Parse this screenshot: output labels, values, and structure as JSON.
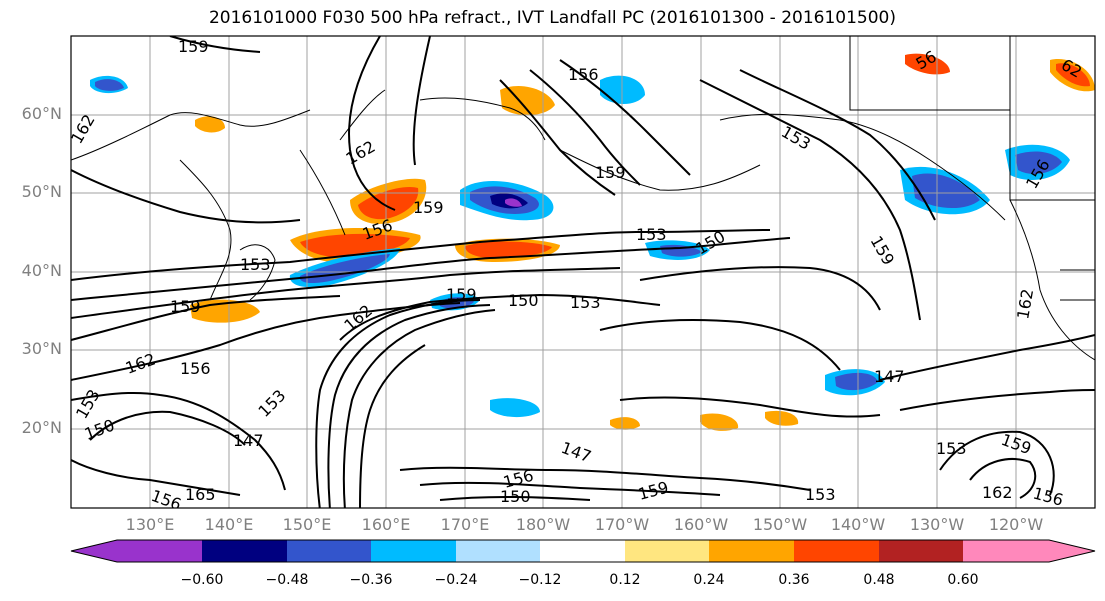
{
  "title": "2016101000 F030 500 hPa refract., IVT Landfall PC (2016101300 - 2016101500)",
  "lat_labels": [
    "60°N",
    "50°N",
    "40°N",
    "30°N",
    "20°N"
  ],
  "lon_labels": [
    "130°E",
    "140°E",
    "150°E",
    "160°E",
    "170°E",
    "180°W",
    "170°W",
    "160°W",
    "150°W",
    "140°W",
    "130°W",
    "120°W"
  ],
  "contour_labels": [
    "159",
    "162",
    "156",
    "162",
    "159",
    "159",
    "153",
    "153",
    "150",
    "159",
    "156",
    "153",
    "159",
    "150",
    "153",
    "159",
    "162",
    "156",
    "162",
    "150",
    "147",
    "165",
    "147",
    "156",
    "150",
    "159",
    "153",
    "147",
    "156",
    "153",
    "159",
    "162",
    "156",
    "56",
    "153",
    "156",
    "153",
    "162",
    "62"
  ],
  "colorbar": {
    "ticks": [
      "−0.60",
      "−0.48",
      "−0.36",
      "−0.24",
      "−0.12",
      "0.12",
      "0.24",
      "0.36",
      "0.48",
      "0.60"
    ],
    "colors": [
      "#9933cc",
      "#000080",
      "#3355cc",
      "#00bbff",
      "#b0e0ff",
      "#ffffff",
      "#ffe680",
      "#ffa500",
      "#ff4500",
      "#b22222",
      "#ff88bb"
    ]
  }
}
